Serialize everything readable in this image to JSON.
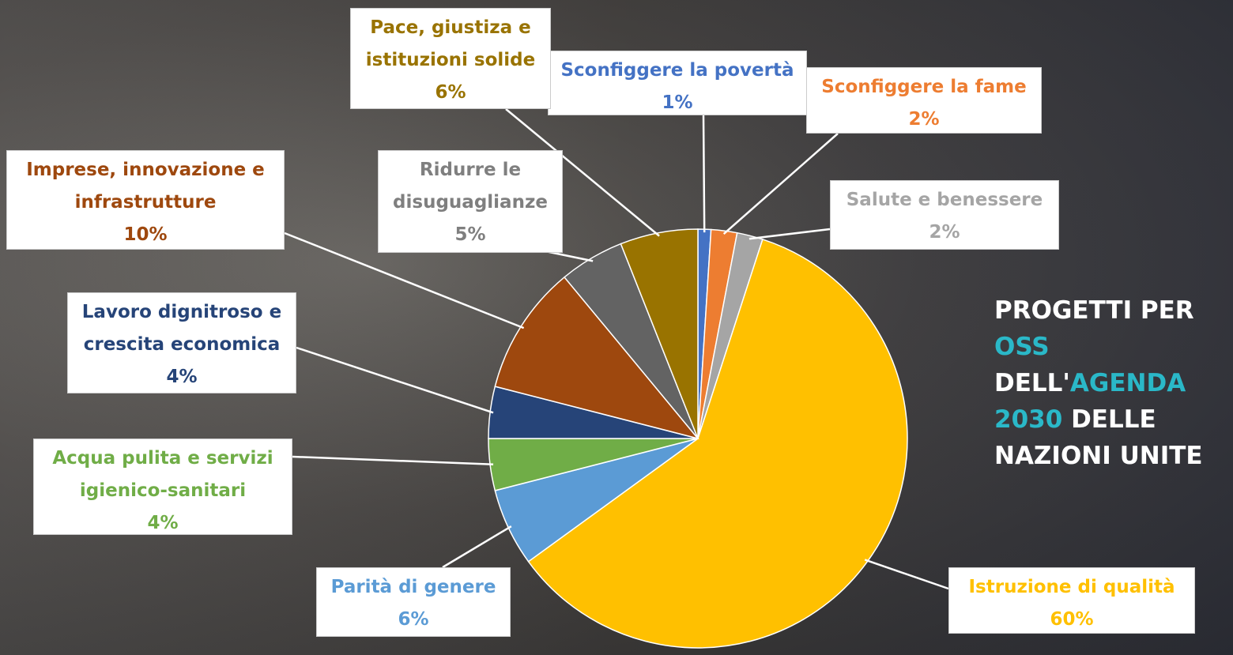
{
  "chart_data": {
    "type": "pie",
    "title": [
      {
        "text": "PROGETTI PER ",
        "color": "#ffffff"
      },
      {
        "text": "OSS",
        "color": "#2ab8c8"
      },
      {
        "text": " DELL'",
        "color": "#ffffff"
      },
      {
        "text": "AGENDA 2030",
        "color": "#2ab8c8"
      },
      {
        "text": " DELLE NAZIONI UNITE",
        "color": "#ffffff"
      }
    ],
    "categories": [
      "Sconfiggere la povertà",
      "Sconfiggere la fame",
      "Salute e benessere",
      "Istruzione di qualità",
      "Parità di genere",
      "Acqua  pulita e servizi igienico-sanitari",
      "Lavoro dignitroso e crescita economica",
      "Imprese, innovazione e infrastrutture",
      "Ridurre le disuguaglianze",
      "Pace, giustiza e istituzioni solide"
    ],
    "values": [
      1,
      2,
      2,
      60,
      6,
      4,
      4,
      10,
      5,
      6
    ],
    "value_labels": [
      "1%",
      "2%",
      "2%",
      "60%",
      "6%",
      "4%",
      "4%",
      "10%",
      "5%",
      "6%"
    ],
    "colors": [
      "#4472c4",
      "#ed7d31",
      "#a5a5a5",
      "#ffc000",
      "#5b9bd5",
      "#70ad47",
      "#264478",
      "#9e480e",
      "#636363",
      "#997300"
    ],
    "label_colors": [
      "#4472c4",
      "#ed7d31",
      "#a5a5a5",
      "#ffc000",
      "#5b9bd5",
      "#70ad47",
      "#264478",
      "#9e480e",
      "#7f7f7f",
      "#997300"
    ]
  }
}
